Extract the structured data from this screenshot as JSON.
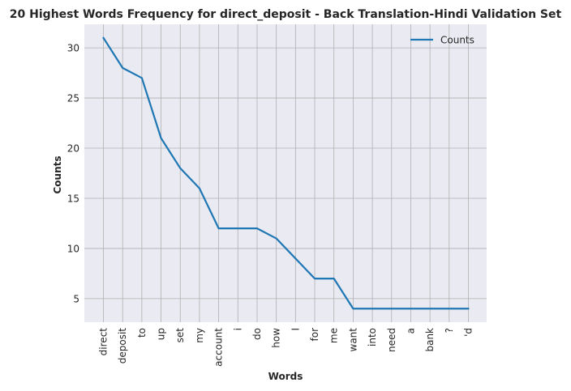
{
  "chart_data": {
    "type": "line",
    "title": "20 Highest Words Frequency for direct_deposit - Back Translation-Hindi Validation Set",
    "xlabel": "Words",
    "ylabel": "Counts",
    "categories": [
      "direct",
      "deposit",
      "to",
      "up",
      "set",
      "my",
      "account",
      "i",
      "do",
      "how",
      "I",
      "for",
      "me",
      "want",
      "into",
      "need",
      "a",
      "bank",
      "?",
      "'d"
    ],
    "series": [
      {
        "name": "Counts",
        "color": "#1f77b4",
        "values": [
          31,
          28,
          27,
          21,
          18,
          16,
          12,
          12,
          12,
          11,
          9,
          7,
          7,
          4,
          4,
          4,
          4,
          4,
          4,
          4
        ]
      }
    ],
    "ylim": [
      2.65,
      32.35
    ],
    "yticks": [
      5,
      10,
      15,
      20,
      25,
      30
    ],
    "grid": true,
    "legend_position": "top-right",
    "background_color": "#eaeaf2",
    "grid_color": "#b0b0b0"
  }
}
